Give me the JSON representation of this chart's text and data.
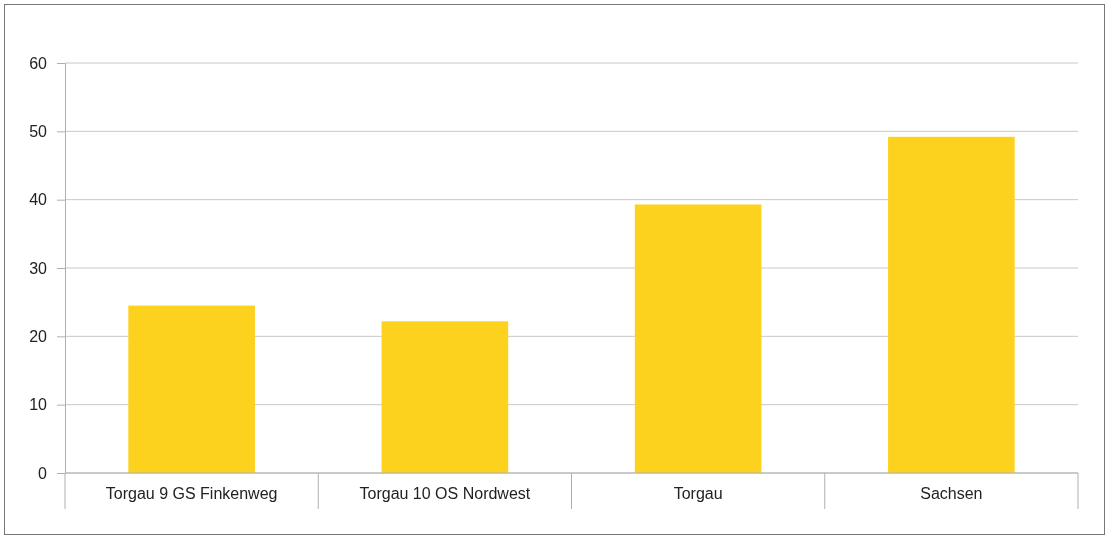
{
  "chart_data": {
    "type": "bar",
    "categories": [
      "Torgau 9 GS Finkenweg",
      "Torgau 10 OS Nordwest",
      "Torgau",
      "Sachsen"
    ],
    "values": [
      24.5,
      22.2,
      39.3,
      49.2
    ],
    "color": "#fcd21f",
    "ylim": [
      0,
      60
    ],
    "yticks": [
      0,
      10,
      20,
      30,
      40,
      50,
      60
    ],
    "grid": "y"
  }
}
